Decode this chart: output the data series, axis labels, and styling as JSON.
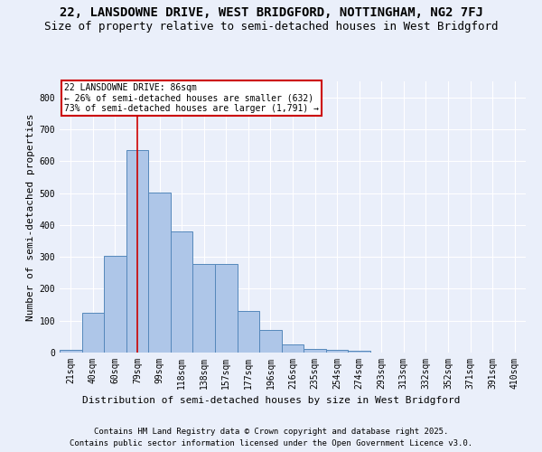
{
  "title": "22, LANSDOWNE DRIVE, WEST BRIDGFORD, NOTTINGHAM, NG2 7FJ",
  "subtitle": "Size of property relative to semi-detached houses in West Bridgford",
  "xlabel": "Distribution of semi-detached houses by size in West Bridgford",
  "ylabel": "Number of semi-detached properties",
  "footnote1": "Contains HM Land Registry data © Crown copyright and database right 2025.",
  "footnote2": "Contains public sector information licensed under the Open Government Licence v3.0.",
  "annotation_title": "22 LANSDOWNE DRIVE: 86sqm",
  "annotation_line2": "← 26% of semi-detached houses are smaller (632)",
  "annotation_line3": "73% of semi-detached houses are larger (1,791) →",
  "bar_labels": [
    "21sqm",
    "40sqm",
    "60sqm",
    "79sqm",
    "99sqm",
    "118sqm",
    "138sqm",
    "157sqm",
    "177sqm",
    "196sqm",
    "216sqm",
    "235sqm",
    "254sqm",
    "274sqm",
    "293sqm",
    "313sqm",
    "332sqm",
    "352sqm",
    "371sqm",
    "391sqm",
    "410sqm"
  ],
  "bar_values": [
    8,
    125,
    302,
    635,
    502,
    380,
    278,
    278,
    130,
    72,
    25,
    10,
    8,
    5,
    0,
    0,
    0,
    0,
    0,
    0,
    0
  ],
  "bar_color": "#aec6e8",
  "bar_edge_color": "#5588bb",
  "background_color": "#eaeffa",
  "grid_color": "#ffffff",
  "vline_x": 3,
  "vline_color": "#cc0000",
  "ylim": [
    0,
    850
  ],
  "yticks": [
    0,
    100,
    200,
    300,
    400,
    500,
    600,
    700,
    800
  ],
  "annotation_box_color": "white",
  "annotation_box_edge": "#cc0000",
  "title_fontsize": 10,
  "subtitle_fontsize": 9,
  "axis_fontsize": 8,
  "tick_fontsize": 7,
  "footnote_fontsize": 6.5
}
